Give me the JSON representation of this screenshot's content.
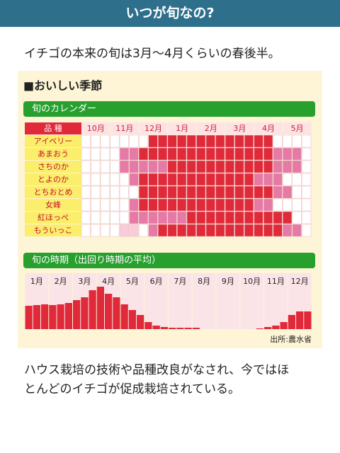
{
  "header": {
    "title": "いつが旬なの?"
  },
  "intro": "イチゴの本来の旬は3月〜4月くらいの春後半。",
  "section_title": "■おいしい季節",
  "calendar": {
    "title": "旬のカレンダー",
    "corner": "品 種",
    "months": [
      "10月",
      "11月",
      "12月",
      "1月",
      "2月",
      "3月",
      "4月",
      "5月"
    ],
    "cell_colors": [
      "#ffffff",
      "#f8ccd9",
      "#e57aa6",
      "#e02a3a"
    ],
    "rows": [
      {
        "name": "アイベリー",
        "cells": [
          0,
          0,
          0,
          0,
          0,
          0,
          0,
          3,
          3,
          3,
          3,
          3,
          3,
          3,
          3,
          3,
          3,
          3,
          3,
          3,
          0,
          0,
          0,
          0
        ]
      },
      {
        "name": "あまおう",
        "cells": [
          0,
          0,
          0,
          0,
          2,
          2,
          3,
          3,
          3,
          3,
          3,
          3,
          3,
          3,
          3,
          3,
          3,
          3,
          3,
          3,
          2,
          2,
          2,
          0
        ]
      },
      {
        "name": "さちのか",
        "cells": [
          0,
          0,
          0,
          0,
          2,
          2,
          2,
          2,
          2,
          3,
          3,
          3,
          3,
          3,
          3,
          3,
          3,
          3,
          3,
          3,
          2,
          2,
          2,
          0
        ]
      },
      {
        "name": "とよのか",
        "cells": [
          0,
          0,
          0,
          0,
          0,
          2,
          3,
          3,
          3,
          3,
          3,
          3,
          3,
          3,
          3,
          3,
          3,
          3,
          2,
          2,
          2,
          0,
          0,
          0
        ]
      },
      {
        "name": "とちおとめ",
        "cells": [
          0,
          0,
          0,
          0,
          0,
          0,
          3,
          3,
          3,
          3,
          3,
          3,
          3,
          3,
          3,
          3,
          3,
          3,
          3,
          3,
          2,
          2,
          0,
          0
        ]
      },
      {
        "name": "女峰",
        "cells": [
          0,
          0,
          0,
          0,
          0,
          2,
          3,
          3,
          3,
          3,
          3,
          3,
          3,
          3,
          3,
          3,
          3,
          3,
          2,
          2,
          0,
          0,
          0,
          0
        ]
      },
      {
        "name": "紅ほっぺ",
        "cells": [
          0,
          0,
          0,
          0,
          0,
          2,
          2,
          2,
          2,
          2,
          2,
          3,
          3,
          3,
          3,
          3,
          3,
          3,
          3,
          3,
          3,
          3,
          0,
          0
        ]
      },
      {
        "name": "もういっこ",
        "cells": [
          0,
          0,
          0,
          0,
          1,
          1,
          0,
          2,
          3,
          3,
          3,
          3,
          3,
          3,
          3,
          3,
          3,
          3,
          3,
          3,
          3,
          2,
          2,
          0
        ]
      }
    ]
  },
  "chart_data": {
    "type": "bar",
    "title": "旬の時期（出回り時期の平均）",
    "categories": [
      "1月",
      "2月",
      "3月",
      "4月",
      "5月",
      "6月",
      "7月",
      "8月",
      "9月",
      "10月",
      "11月",
      "12月"
    ],
    "values": [
      [
        33,
        34,
        35
      ],
      [
        34,
        35,
        37
      ],
      [
        41,
        45,
        55
      ],
      [
        60,
        50,
        45
      ],
      [
        35,
        27,
        20
      ],
      [
        10,
        5,
        3
      ],
      [
        2,
        2,
        2
      ],
      [
        2,
        0,
        0
      ],
      [
        0,
        0,
        0
      ],
      [
        0,
        0,
        1
      ],
      [
        3,
        5,
        10
      ],
      [
        20,
        25,
        25
      ]
    ],
    "color": "#e02a3a"
  },
  "source": "出所:農水省",
  "outro": [
    "ハウス栽培の技術や品種改良がなされ、今ではほ",
    "とんどのイチゴが促成栽培されている。"
  ]
}
